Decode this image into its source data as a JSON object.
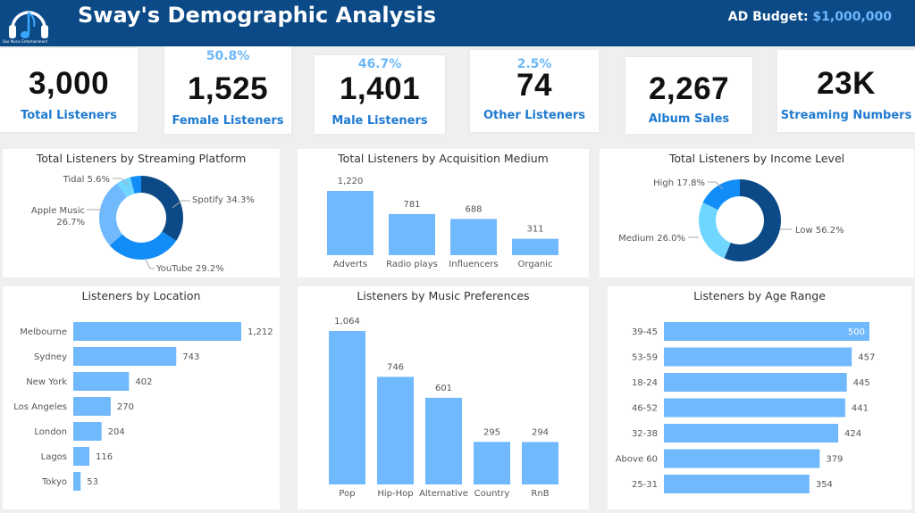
{
  "header": {
    "logo_caption": "Sax Music Entertainment",
    "title": "Sway's Demographic Analysis",
    "budget_label": "AD Budget:",
    "budget_value": "$1,000,000"
  },
  "kpis": [
    {
      "value": "3,000",
      "label": "Total Listeners",
      "pct": ""
    },
    {
      "value": "1,525",
      "label": "Female Listeners",
      "pct": "50.8%"
    },
    {
      "value": "1,401",
      "label": "Male Listeners",
      "pct": "46.7%"
    },
    {
      "value": "74",
      "label": "Other Listeners",
      "pct": "2.5%"
    },
    {
      "value": "2,267",
      "label": "Album Sales",
      "pct": ""
    },
    {
      "value": "23K",
      "label": "Streaming Numbers",
      "pct": ""
    }
  ],
  "colors": {
    "header_bg": "#0b4a86",
    "accent_text": "#1f7bd1",
    "pct_text": "#6cb8f7",
    "bar": "#70b9fd",
    "donut_dark": "#0b4a86",
    "donut_mid": "#128cf7",
    "donut_light": "#70b9fd",
    "donut_cyan": "#6fd6ff"
  },
  "chart_data": [
    {
      "id": "platform",
      "type": "pie",
      "title": "Total Listeners by Streaming Platform",
      "slices": [
        {
          "label": "Spotify",
          "value": 34.3,
          "display": "Spotify 34.3%",
          "color": "#0b4a86"
        },
        {
          "label": "YouTube",
          "value": 29.2,
          "display": "YouTube 29.2%",
          "color": "#128cf7"
        },
        {
          "label": "Apple Music",
          "value": 26.7,
          "display": "Apple Music 26.7%",
          "color": "#70b9fd"
        },
        {
          "label": "Tidal",
          "value": 5.6,
          "display": "Tidal 5.6%",
          "color": "#6fd6ff"
        },
        {
          "label": "",
          "value": 4.2,
          "display": "",
          "color": "#128cf7"
        }
      ]
    },
    {
      "id": "acquisition",
      "type": "bar",
      "title": "Total Listeners by Acquisition Medium",
      "categories": [
        "Adverts",
        "Radio plays",
        "Influencers",
        "Organic"
      ],
      "values": [
        1220,
        781,
        688,
        311
      ],
      "labels": [
        "1,220",
        "781",
        "688",
        "311"
      ]
    },
    {
      "id": "income",
      "type": "pie",
      "title": "Total Listeners by Income Level",
      "slices": [
        {
          "label": "Low",
          "value": 56.2,
          "display": "Low 56.2%",
          "color": "#0b4a86"
        },
        {
          "label": "Medium",
          "value": 26.0,
          "display": "Medium 26.0%",
          "color": "#6fd6ff"
        },
        {
          "label": "High",
          "value": 17.8,
          "display": "High 17.8%",
          "color": "#128cf7"
        }
      ]
    },
    {
      "id": "location",
      "type": "bar",
      "orientation": "horizontal",
      "title": "Listeners by Location",
      "categories": [
        "Melbourne",
        "Sydney",
        "New York",
        "Los Angeles",
        "London",
        "Lagos",
        "Tokyo"
      ],
      "values": [
        1212,
        743,
        402,
        270,
        204,
        116,
        53
      ],
      "labels": [
        "1,212",
        "743",
        "402",
        "270",
        "204",
        "116",
        "53"
      ]
    },
    {
      "id": "music",
      "type": "bar",
      "title": "Listeners by Music Preferences",
      "categories": [
        "Pop",
        "Hip-Hop",
        "Alternative",
        "Country",
        "RnB"
      ],
      "values": [
        1064,
        746,
        601,
        295,
        294
      ],
      "labels": [
        "1,064",
        "746",
        "601",
        "295",
        "294"
      ]
    },
    {
      "id": "age",
      "type": "bar",
      "orientation": "horizontal",
      "title": "Listeners by Age Range",
      "categories": [
        "39-45",
        "53-59",
        "18-24",
        "46-52",
        "32-38",
        "Above 60",
        "25-31"
      ],
      "values": [
        500,
        457,
        445,
        441,
        424,
        379,
        354
      ],
      "labels": [
        "500",
        "457",
        "445",
        "441",
        "424",
        "379",
        "354"
      ]
    }
  ]
}
